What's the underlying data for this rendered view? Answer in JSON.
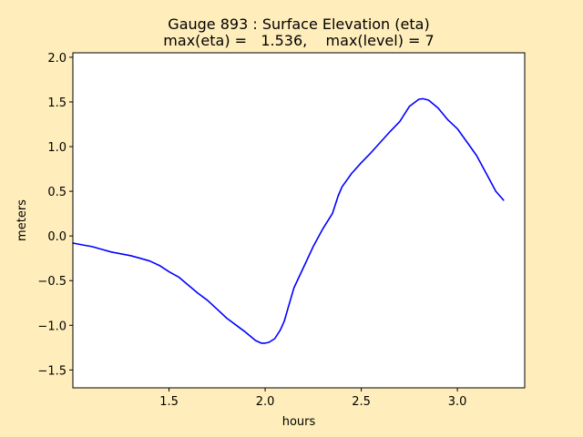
{
  "chart_data": {
    "type": "line",
    "title": "Gauge 893 : Surface Elevation (eta)",
    "subtitle": "max(eta) =   1.536,    max(level) = 7",
    "xlabel": "hours",
    "ylabel": "meters",
    "xlim": [
      1.0,
      3.35
    ],
    "ylim": [
      -1.7,
      2.05
    ],
    "xticks": [
      1.5,
      2.0,
      2.5,
      3.0
    ],
    "xtick_labels": [
      "1.5",
      "2.0",
      "2.5",
      "3.0"
    ],
    "yticks": [
      -1.5,
      -1.0,
      -0.5,
      0.0,
      0.5,
      1.0,
      1.5,
      2.0
    ],
    "ytick_labels": [
      "−1.5",
      "−1.0",
      "−0.5",
      "0.0",
      "0.5",
      "1.0",
      "1.5",
      "2.0"
    ],
    "grid": false,
    "series": [
      {
        "color": "#0000ff",
        "x": [
          1.0,
          1.05,
          1.1,
          1.15,
          1.2,
          1.25,
          1.3,
          1.35,
          1.4,
          1.45,
          1.5,
          1.55,
          1.6,
          1.65,
          1.7,
          1.75,
          1.8,
          1.85,
          1.9,
          1.95,
          1.98,
          2.0,
          2.02,
          2.05,
          2.08,
          2.1,
          2.12,
          2.15,
          2.2,
          2.25,
          2.3,
          2.35,
          2.38,
          2.4,
          2.45,
          2.5,
          2.55,
          2.6,
          2.65,
          2.7,
          2.75,
          2.8,
          2.82,
          2.85,
          2.9,
          2.95,
          3.0,
          3.05,
          3.1,
          3.15,
          3.2,
          3.24
        ],
        "y": [
          -0.08,
          -0.1,
          -0.12,
          -0.15,
          -0.18,
          -0.2,
          -0.22,
          -0.25,
          -0.28,
          -0.33,
          -0.4,
          -0.46,
          -0.55,
          -0.64,
          -0.72,
          -0.82,
          -0.92,
          -1.0,
          -1.08,
          -1.17,
          -1.2,
          -1.2,
          -1.19,
          -1.15,
          -1.05,
          -0.95,
          -0.8,
          -0.58,
          -0.35,
          -0.12,
          0.08,
          0.25,
          0.45,
          0.55,
          0.7,
          0.82,
          0.93,
          1.05,
          1.17,
          1.28,
          1.45,
          1.53,
          1.536,
          1.52,
          1.43,
          1.3,
          1.2,
          1.05,
          0.9,
          0.7,
          0.5,
          0.4
        ]
      }
    ]
  }
}
